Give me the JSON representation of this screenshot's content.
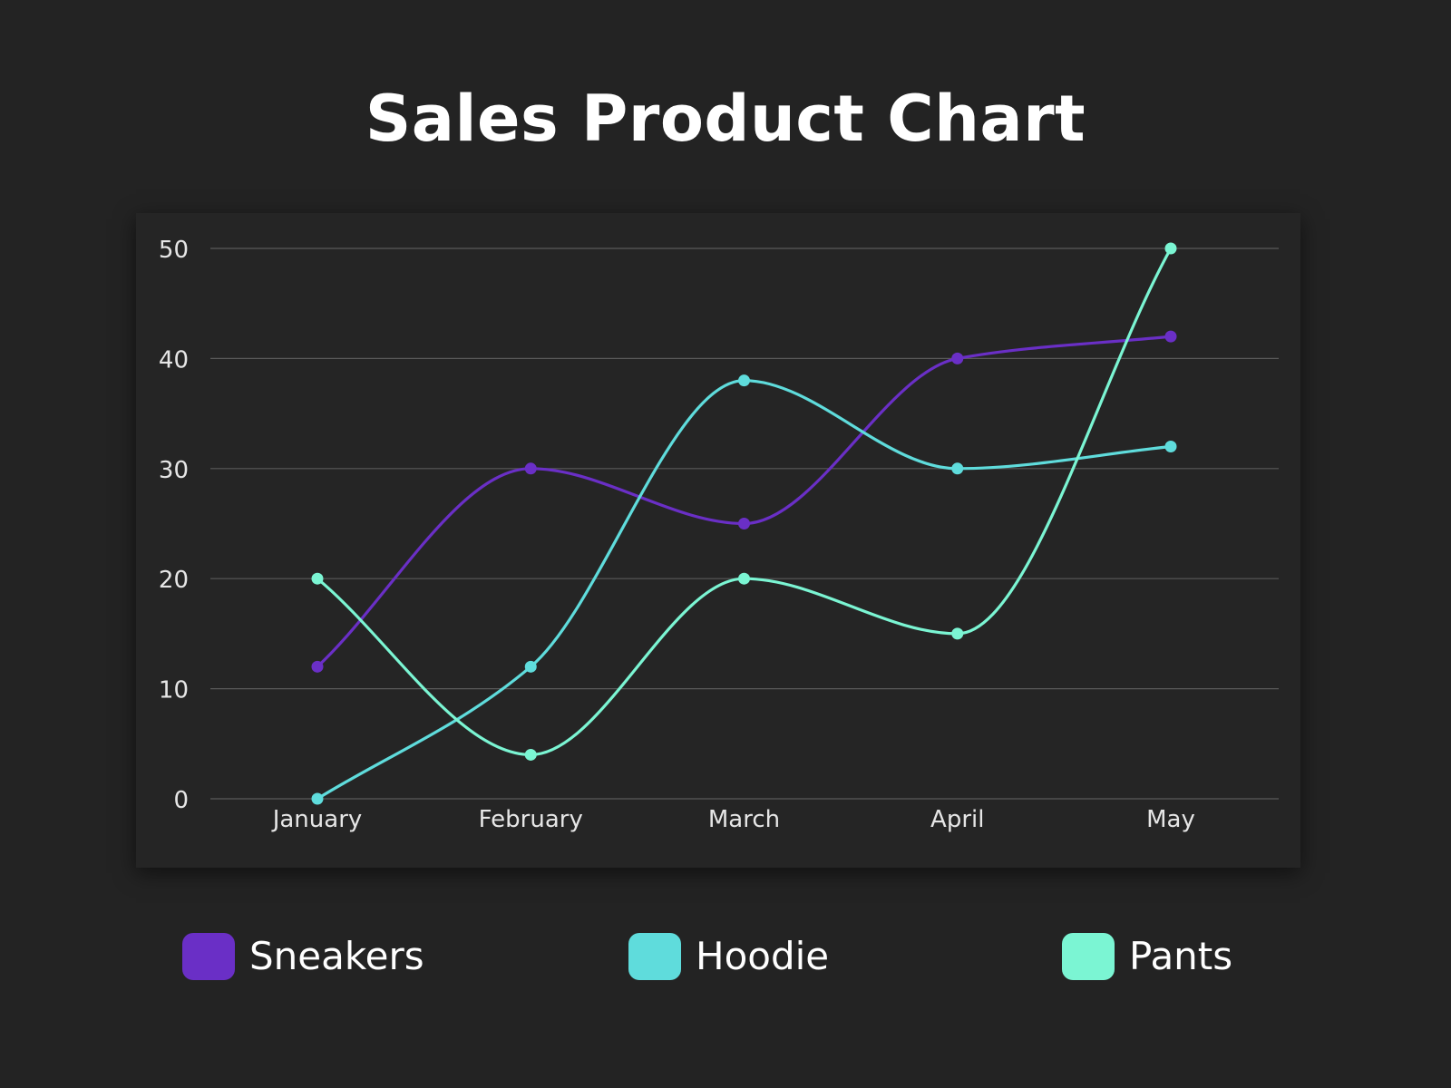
{
  "chart_data": {
    "type": "line",
    "title": "Sales Product Chart",
    "xlabel": "",
    "ylabel": "",
    "categories": [
      "January",
      "February",
      "March",
      "April",
      "May"
    ],
    "ylim": [
      0,
      50
    ],
    "yticks": [
      0,
      10,
      20,
      30,
      40,
      50
    ],
    "grid": true,
    "legend_position": "bottom",
    "curve": "smooth",
    "series": [
      {
        "name": "Sneakers",
        "color": "#6a2fc6",
        "values": [
          12,
          30,
          25,
          40,
          42
        ]
      },
      {
        "name": "Hoodie",
        "color": "#5fdcdc",
        "values": [
          0,
          12,
          38,
          30,
          32
        ]
      },
      {
        "name": "Pants",
        "color": "#7bf5d3",
        "values": [
          20,
          4,
          20,
          15,
          50
        ]
      }
    ]
  },
  "theme": {
    "background": "#232323",
    "panel": "#252525",
    "gridline": "#5a5a5a",
    "text": "#ffffff",
    "tick_text": "#e6e6e6"
  }
}
